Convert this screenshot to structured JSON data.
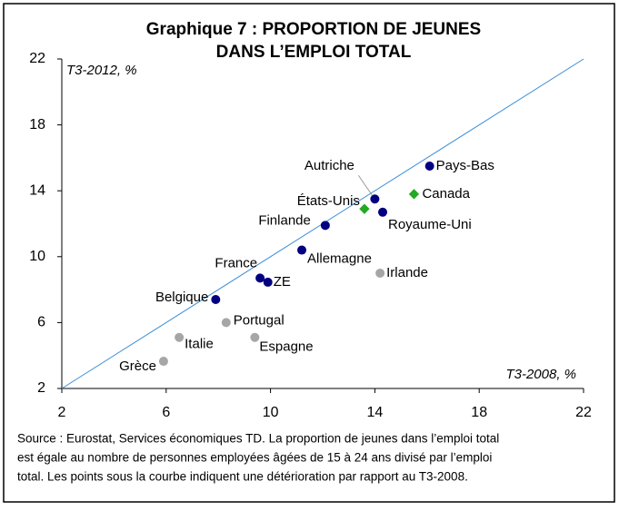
{
  "chart_data": {
    "type": "scatter",
    "title": [
      "Graphique 7 : PROPORTION DE JEUNES",
      "DANS L’EMPLOI TOTAL"
    ],
    "y_label": "T3-2012, %",
    "x_label": "T3-2008, %",
    "labels": [
      "Pays-Bas",
      "Canada",
      "Autriche",
      "Royaume-Uni",
      "États-Unis",
      "Finlande",
      "Allemagne",
      "Irlande",
      "France",
      "ZE",
      "Belgique",
      "Portugal",
      "Italie",
      "Espagne",
      "Grèce"
    ],
    "x": [
      16.1,
      15.5,
      14.0,
      14.3,
      13.6,
      12.1,
      11.2,
      14.2,
      9.6,
      9.9,
      7.9,
      8.3,
      6.5,
      9.4,
      5.9
    ],
    "y": [
      15.5,
      13.8,
      13.5,
      12.7,
      12.9,
      11.9,
      10.4,
      9.0,
      8.7,
      8.45,
      7.4,
      6.0,
      5.1,
      5.1,
      3.65
    ],
    "colors": [
      "#000080",
      "#22aa22",
      "#000080",
      "#000080",
      "#22aa22",
      "#000080",
      "#000080",
      "#a6a6a6",
      "#000080",
      "#000080",
      "#000080",
      "#a6a6a6",
      "#a6a6a6",
      "#a6a6a6",
      "#a6a6a6"
    ],
    "line_color": "#3a8fd9",
    "xlim": [
      2,
      22
    ],
    "xticks": [
      2,
      6,
      10,
      14,
      18,
      22
    ],
    "ylim": [
      2,
      22
    ],
    "yticks": [
      2,
      6,
      10,
      14,
      18,
      22
    ],
    "source": [
      "Source : Eurostat, Services économiques TD. La proportion de jeunes dans l’emploi total",
      "est égale au nombre de personnes employées âgées de 15 à 24 ans divisé par l’emploi",
      "total. Les points sous la courbe indiquent une détérioration par rapport au T3-2008."
    ]
  }
}
